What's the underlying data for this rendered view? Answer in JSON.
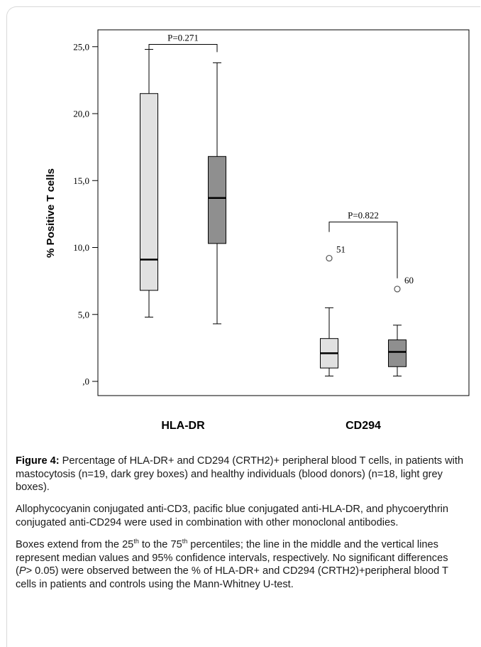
{
  "chart_data": {
    "type": "box",
    "ylabel": "% Positive T cells",
    "ylim": [
      0,
      26.8
    ],
    "yticks": [
      0,
      5,
      10,
      15,
      20,
      25
    ],
    "ytick_labels": [
      ",0",
      "5,0",
      "10,0",
      "15,0",
      "20,0",
      "25,0"
    ],
    "categories": [
      "HLA-DR",
      "CD294"
    ],
    "groups": [
      {
        "category": "HLA-DR",
        "boxes": [
          {
            "fill": "#e1e1e1",
            "whisker_low": 4.8,
            "q1": 6.8,
            "median": 9.1,
            "q3": 21.5,
            "whisker_high": 24.8
          },
          {
            "fill": "#8f8f8f",
            "whisker_low": 4.3,
            "q1": 10.3,
            "median": 13.7,
            "q3": 16.8,
            "whisker_high": 23.8
          }
        ],
        "pvalue": "P=0.271"
      },
      {
        "category": "CD294",
        "boxes": [
          {
            "fill": "#e1e1e1",
            "whisker_low": 0.4,
            "q1": 1.0,
            "median": 2.1,
            "q3": 3.2,
            "whisker_high": 5.5,
            "outliers": [
              {
                "value": 9.2,
                "label": "51"
              }
            ]
          },
          {
            "fill": "#8f8f8f",
            "whisker_low": 0.4,
            "q1": 1.1,
            "median": 2.2,
            "q3": 3.1,
            "whisker_high": 4.2,
            "outliers": [
              {
                "value": 6.9,
                "label": "60"
              }
            ]
          }
        ],
        "pvalue": "P=0.822"
      }
    ]
  },
  "caption": {
    "p1_bold": "Figure 4:",
    "p1_text": " Percentage of HLA-DR+ and CD294 (CRTH2)+ peripheral blood T cells, in patients with mastocytosis (n=19, dark grey boxes) and healthy individuals (blood donors) (n=18, light grey boxes).",
    "p2": "Allophycocyanin conjugated anti-CD3, pacific blue conjugated anti-HLA-DR, and phycoerythrin conjugated anti-CD294 were used in combination with other monoclonal antibodies.",
    "p3_a": "Boxes extend from the 25",
    "p3_sup1": "th",
    "p3_b": " to the 75",
    "p3_sup2": "th",
    "p3_c": " percentiles; the line in the middle and the vertical lines represent median values and 95% confidence intervals, respectively. No significant differences (",
    "p3_italic": "P",
    "p3_d": "> 0.05) were observed between the % of HLA-DR+ and CD294 (CRTH2)+peripheral blood T cells in patients and controls using the Mann-Whitney U-test."
  }
}
